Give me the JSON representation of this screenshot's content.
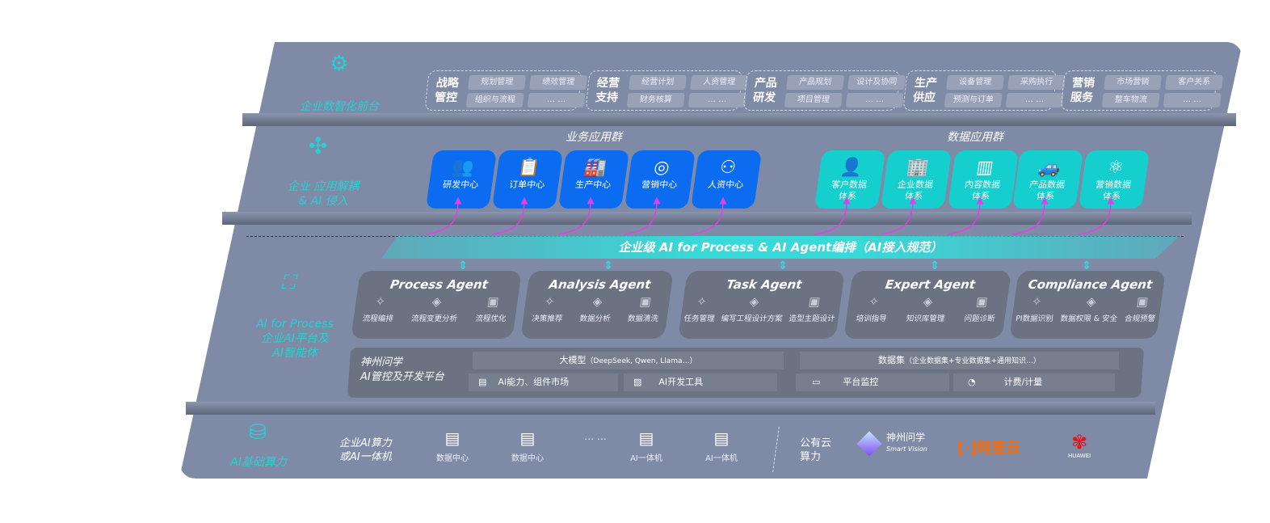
{
  "layers": {
    "front": "企业数智化前台",
    "apps": [
      "企业 应用解耦",
      "& AI 侵入"
    ],
    "ai": [
      "AI for Process",
      "企业AI平台及",
      "AI智能体"
    ],
    "infra": "AI基础算力"
  },
  "front_groups": [
    {
      "title": [
        "战略",
        "管控"
      ],
      "items": [
        "规划管理",
        "绩效管理",
        "组织与流程",
        "… …"
      ]
    },
    {
      "title": [
        "经营",
        "支持"
      ],
      "items": [
        "经营计划",
        "人资管理",
        "财务核算",
        "… …"
      ]
    },
    {
      "title": [
        "产品",
        "研发"
      ],
      "items": [
        "产品规划",
        "设计及协同",
        "项目管理",
        "… …"
      ]
    },
    {
      "title": [
        "生产",
        "供应"
      ],
      "items": [
        "设备管理",
        "采购执行",
        "预测与订单",
        "… …"
      ]
    },
    {
      "title": [
        "营销",
        "服务"
      ],
      "items": [
        "市场营销",
        "客户关系",
        "整车物流",
        "… …"
      ]
    }
  ],
  "business_apps": {
    "title": "业务应用群",
    "items": [
      {
        "label": "研发中心",
        "icon": "users-icon"
      },
      {
        "label": "订单中心",
        "icon": "clipboard-icon"
      },
      {
        "label": "生产中心",
        "icon": "factory-icon"
      },
      {
        "label": "营销中心",
        "icon": "target-icon"
      },
      {
        "label": "人资中心",
        "icon": "person-icon"
      }
    ]
  },
  "data_apps": {
    "title": "数据应用群",
    "items": [
      {
        "label": [
          "客户数据",
          "体系"
        ],
        "icon": "user-icon"
      },
      {
        "label": [
          "企业数据",
          "体系"
        ],
        "icon": "building-icon"
      },
      {
        "label": [
          "内容数据",
          "体系"
        ],
        "icon": "books-icon"
      },
      {
        "label": [
          "产品数据",
          "体系"
        ],
        "icon": "car-icon"
      },
      {
        "label": [
          "营销数据",
          "体系"
        ],
        "icon": "atom-icon"
      }
    ]
  },
  "banner": "企业级 AI for Process & AI Agent编排（AI接入规范）",
  "agents": [
    {
      "name": "Process Agent",
      "items": [
        "流程编排",
        "流程变更分析",
        "流程优化"
      ]
    },
    {
      "name": "Analysis Agent",
      "items": [
        "决策推荐",
        "数据分析",
        "数据清洗"
      ]
    },
    {
      "name": "Task Agent",
      "items": [
        "任务管理",
        "编写工程设计方案",
        "造型主题设计"
      ]
    },
    {
      "name": "Expert Agent",
      "items": [
        "培训指导",
        "知识库管理",
        "问题诊断"
      ]
    },
    {
      "name": "Compliance Agent",
      "items": [
        "PI数据识别",
        "数据权限 & 安全",
        "合规预警"
      ]
    }
  ],
  "platform": {
    "title": [
      "神州问学",
      "AI管控及开发平台"
    ],
    "model": "大模型",
    "model_note": "（DeepSeek, Qwen, Llama…）",
    "dataset": "数据集",
    "dataset_note": "（企业数据集+专业数据集+通用知识…）",
    "tools": [
      "AI能力、组件市场",
      "AI开发工具",
      "平台监控",
      "计费/计量"
    ]
  },
  "infra": {
    "private": [
      "企业AI算力",
      "或AI一体机"
    ],
    "nodes": [
      "数据中心",
      "数据中心",
      "… …",
      "AI一体机",
      "AI一体机"
    ],
    "public": [
      "公有云",
      "算力"
    ],
    "vendors": {
      "shenzhou": "神州问学",
      "shenzhou_en": "Smart Vision",
      "aliyun": "阿里云",
      "huawei": "HUAWEI"
    }
  },
  "colors": {
    "panel": "#7f8ba6",
    "blue": "#0b6cf2",
    "teal": "#15cfcf",
    "accent": "#22d3d3",
    "arrow": "#e040e8",
    "aliyun": "#ff6a00",
    "huawei": "#e8141b"
  }
}
